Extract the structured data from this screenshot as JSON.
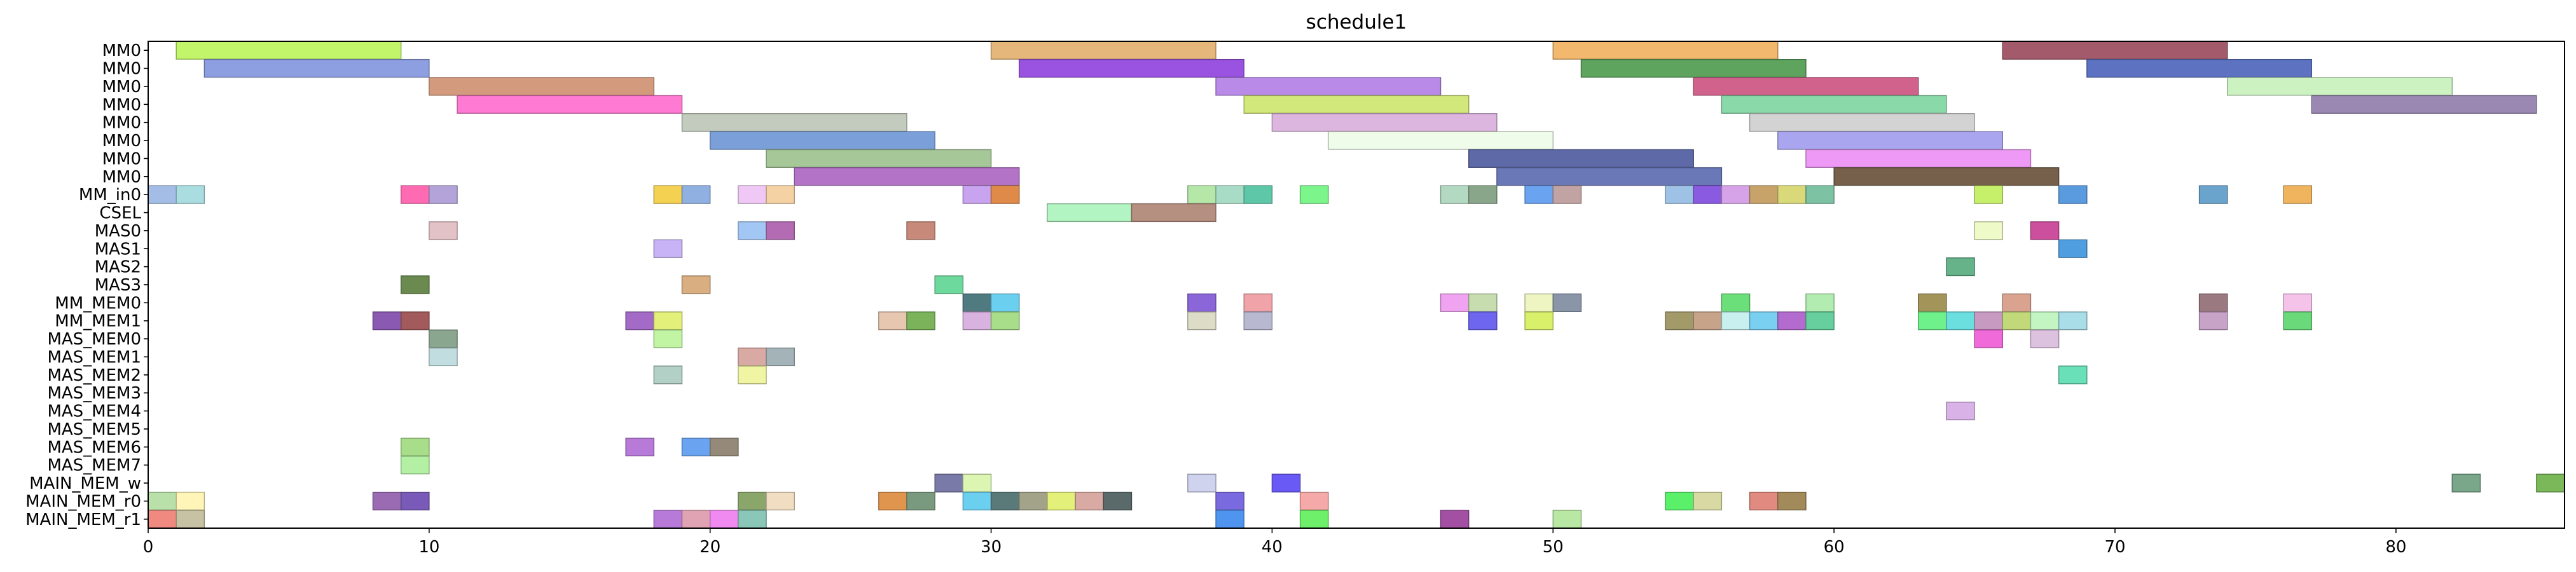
{
  "chart_data": {
    "type": "gantt",
    "title": "schedule1",
    "xlabel": "",
    "ylabel": "",
    "xlim": [
      0,
      86
    ],
    "xticks": [
      0,
      10,
      20,
      30,
      40,
      50,
      60,
      70,
      80
    ],
    "grid": false,
    "legend": "none",
    "rows": [
      "MM0",
      "MM0",
      "MM0",
      "MM0",
      "MM0",
      "MM0",
      "MM0",
      "MM0",
      "MM_in0",
      "CSEL",
      "MAS0",
      "MAS1",
      "MAS2",
      "MAS3",
      "MM_MEM0",
      "MM_MEM1",
      "MAS_MEM0",
      "MAS_MEM1",
      "MAS_MEM2",
      "MAS_MEM3",
      "MAS_MEM4",
      "MAS_MEM5",
      "MAS_MEM6",
      "MAS_MEM7",
      "MAIN_MEM_w",
      "MAIN_MEM_r0",
      "MAIN_MEM_r1"
    ],
    "tasks": [
      {
        "row": 0,
        "start": 1,
        "end": 9,
        "color": "#c2f56a"
      },
      {
        "row": 0,
        "start": 30,
        "end": 38,
        "color": "#e6b77a"
      },
      {
        "row": 0,
        "start": 50,
        "end": 58,
        "color": "#f2b86e"
      },
      {
        "row": 0,
        "start": 66,
        "end": 74,
        "color": "#a35a6a"
      },
      {
        "row": 1,
        "start": 2,
        "end": 10,
        "color": "#8d9fe0"
      },
      {
        "row": 1,
        "start": 31,
        "end": 39,
        "color": "#9a52e0"
      },
      {
        "row": 1,
        "start": 51,
        "end": 59,
        "color": "#5ea35e"
      },
      {
        "row": 1,
        "start": 69,
        "end": 77,
        "color": "#5d73c2"
      },
      {
        "row": 2,
        "start": 10,
        "end": 18,
        "color": "#d49a7e"
      },
      {
        "row": 2,
        "start": 38,
        "end": 46,
        "color": "#b98ae8"
      },
      {
        "row": 2,
        "start": 55,
        "end": 63,
        "color": "#d1628c"
      },
      {
        "row": 2,
        "start": 74,
        "end": 82,
        "color": "#cdf2c2"
      },
      {
        "row": 3,
        "start": 11,
        "end": 19,
        "color": "#ff7ad2"
      },
      {
        "row": 3,
        "start": 39,
        "end": 47,
        "color": "#d3e87a"
      },
      {
        "row": 3,
        "start": 56,
        "end": 64,
        "color": "#8ad9a9"
      },
      {
        "row": 3,
        "start": 77,
        "end": 85,
        "color": "#9a88b3"
      },
      {
        "row": 4,
        "start": 19,
        "end": 27,
        "color": "#c2cbbd"
      },
      {
        "row": 4,
        "start": 40,
        "end": 48,
        "color": "#ddb6e0"
      },
      {
        "row": 4,
        "start": 57,
        "end": 65,
        "color": "#d3d3d3"
      },
      {
        "row": 5,
        "start": 20,
        "end": 28,
        "color": "#7a9fd9"
      },
      {
        "row": 5,
        "start": 42,
        "end": 50,
        "color": "#eefce9"
      },
      {
        "row": 5,
        "start": 58,
        "end": 66,
        "color": "#a9a6ef"
      },
      {
        "row": 6,
        "start": 22,
        "end": 30,
        "color": "#a6c797"
      },
      {
        "row": 6,
        "start": 47,
        "end": 55,
        "color": "#5e6aa8"
      },
      {
        "row": 6,
        "start": 59,
        "end": 67,
        "color": "#ee99f5"
      },
      {
        "row": 7,
        "start": 23,
        "end": 31,
        "color": "#b373c7"
      },
      {
        "row": 7,
        "start": 48,
        "end": 56,
        "color": "#6b78b8"
      },
      {
        "row": 7,
        "start": 60,
        "end": 68,
        "color": "#76604c"
      },
      {
        "row": 8,
        "start": 0,
        "end": 1,
        "color": "#a3bde6"
      },
      {
        "row": 8,
        "start": 1,
        "end": 2,
        "color": "#a9dde0"
      },
      {
        "row": 8,
        "start": 9,
        "end": 10,
        "color": "#ff6bb3"
      },
      {
        "row": 8,
        "start": 10,
        "end": 11,
        "color": "#b3a3d9"
      },
      {
        "row": 8,
        "start": 18,
        "end": 19,
        "color": "#f5d152"
      },
      {
        "row": 8,
        "start": 19,
        "end": 20,
        "color": "#8fb0e0"
      },
      {
        "row": 8,
        "start": 21,
        "end": 22,
        "color": "#f0c8f5"
      },
      {
        "row": 8,
        "start": 22,
        "end": 23,
        "color": "#f5d2a3"
      },
      {
        "row": 8,
        "start": 29,
        "end": 30,
        "color": "#c8a3f0"
      },
      {
        "row": 8,
        "start": 30,
        "end": 31,
        "color": "#e08a4a"
      },
      {
        "row": 8,
        "start": 37,
        "end": 38,
        "color": "#b5e8a8"
      },
      {
        "row": 8,
        "start": 38,
        "end": 39,
        "color": "#a9dcc6"
      },
      {
        "row": 8,
        "start": 39,
        "end": 40,
        "color": "#5ec7a8"
      },
      {
        "row": 8,
        "start": 41,
        "end": 42,
        "color": "#7cf58a"
      },
      {
        "row": 8,
        "start": 46,
        "end": 47,
        "color": "#b3d9c2"
      },
      {
        "row": 8,
        "start": 47,
        "end": 48,
        "color": "#8aa68a"
      },
      {
        "row": 8,
        "start": 49,
        "end": 50,
        "color": "#6aa3f0"
      },
      {
        "row": 8,
        "start": 50,
        "end": 51,
        "color": "#c2a3a3"
      },
      {
        "row": 8,
        "start": 54,
        "end": 55,
        "color": "#9dc2e6"
      },
      {
        "row": 8,
        "start": 55,
        "end": 56,
        "color": "#8a5ae0"
      },
      {
        "row": 8,
        "start": 56,
        "end": 57,
        "color": "#d6a3e8"
      },
      {
        "row": 8,
        "start": 57,
        "end": 58,
        "color": "#c7a36a"
      },
      {
        "row": 8,
        "start": 58,
        "end": 59,
        "color": "#d9d97a"
      },
      {
        "row": 8,
        "start": 59,
        "end": 60,
        "color": "#7cc2a3"
      },
      {
        "row": 8,
        "start": 65,
        "end": 66,
        "color": "#c7f06a"
      },
      {
        "row": 8,
        "start": 68,
        "end": 69,
        "color": "#5a9be0"
      },
      {
        "row": 8,
        "start": 73,
        "end": 74,
        "color": "#6aa3cc"
      },
      {
        "row": 8,
        "start": 76,
        "end": 77,
        "color": "#f0b35e"
      },
      {
        "row": 9,
        "start": 32,
        "end": 35,
        "color": "#b3f5c2"
      },
      {
        "row": 9,
        "start": 35,
        "end": 38,
        "color": "#b58f80"
      },
      {
        "row": 10,
        "start": 10,
        "end": 11,
        "color": "#e3c2c7"
      },
      {
        "row": 10,
        "start": 21,
        "end": 22,
        "color": "#a3c7f5"
      },
      {
        "row": 10,
        "start": 22,
        "end": 23,
        "color": "#b36bb3"
      },
      {
        "row": 10,
        "start": 27,
        "end": 28,
        "color": "#c7897a"
      },
      {
        "row": 10,
        "start": 65,
        "end": 66,
        "color": "#eefac7"
      },
      {
        "row": 10,
        "start": 67,
        "end": 68,
        "color": "#cc4f9d"
      },
      {
        "row": 11,
        "start": 18,
        "end": 19,
        "color": "#c7b3f5"
      },
      {
        "row": 11,
        "start": 68,
        "end": 69,
        "color": "#4f9fe0"
      },
      {
        "row": 12,
        "start": 64,
        "end": 65,
        "color": "#66b38a"
      },
      {
        "row": 13,
        "start": 9,
        "end": 10,
        "color": "#6b8a4f"
      },
      {
        "row": 13,
        "start": 19,
        "end": 20,
        "color": "#d9ae80"
      },
      {
        "row": 13,
        "start": 28,
        "end": 29,
        "color": "#6ed99d"
      },
      {
        "row": 14,
        "start": 29,
        "end": 30,
        "color": "#4f7a80"
      },
      {
        "row": 14,
        "start": 30,
        "end": 31,
        "color": "#6bd0f0"
      },
      {
        "row": 14,
        "start": 37,
        "end": 38,
        "color": "#8a66d9"
      },
      {
        "row": 14,
        "start": 39,
        "end": 40,
        "color": "#f0a3a8"
      },
      {
        "row": 14,
        "start": 46,
        "end": 47,
        "color": "#f0a3f0"
      },
      {
        "row": 14,
        "start": 47,
        "end": 48,
        "color": "#c7ddb0"
      },
      {
        "row": 14,
        "start": 49,
        "end": 50,
        "color": "#eef5c2"
      },
      {
        "row": 14,
        "start": 50,
        "end": 51,
        "color": "#8a95a8"
      },
      {
        "row": 14,
        "start": 56,
        "end": 57,
        "color": "#6be07a"
      },
      {
        "row": 14,
        "start": 59,
        "end": 60,
        "color": "#b3ecb0"
      },
      {
        "row": 14,
        "start": 63,
        "end": 64,
        "color": "#a3955a"
      },
      {
        "row": 14,
        "start": 66,
        "end": 67,
        "color": "#d9a38f"
      },
      {
        "row": 14,
        "start": 73,
        "end": 74,
        "color": "#9a7a80"
      },
      {
        "row": 14,
        "start": 76,
        "end": 77,
        "color": "#f5c2ea"
      },
      {
        "row": 15,
        "start": 8,
        "end": 9,
        "color": "#8a5ab3"
      },
      {
        "row": 15,
        "start": 9,
        "end": 10,
        "color": "#a35a5a"
      },
      {
        "row": 15,
        "start": 17,
        "end": 18,
        "color": "#a36bc7"
      },
      {
        "row": 15,
        "start": 18,
        "end": 19,
        "color": "#e3f07a"
      },
      {
        "row": 15,
        "start": 26,
        "end": 27,
        "color": "#e8c7b0"
      },
      {
        "row": 15,
        "start": 27,
        "end": 28,
        "color": "#7ab35a"
      },
      {
        "row": 15,
        "start": 29,
        "end": 30,
        "color": "#d9b3e0"
      },
      {
        "row": 15,
        "start": 30,
        "end": 31,
        "color": "#a8dd8a"
      },
      {
        "row": 15,
        "start": 37,
        "end": 38,
        "color": "#ddddc7"
      },
      {
        "row": 15,
        "start": 39,
        "end": 40,
        "color": "#b8b8d0"
      },
      {
        "row": 15,
        "start": 47,
        "end": 48,
        "color": "#6f66f0"
      },
      {
        "row": 15,
        "start": 49,
        "end": 50,
        "color": "#d9f06a"
      },
      {
        "row": 15,
        "start": 54,
        "end": 55,
        "color": "#a39a6a"
      },
      {
        "row": 15,
        "start": 55,
        "end": 56,
        "color": "#c7a38a"
      },
      {
        "row": 15,
        "start": 56,
        "end": 57,
        "color": "#c7f0ee"
      },
      {
        "row": 15,
        "start": 57,
        "end": 58,
        "color": "#7ad0f0"
      },
      {
        "row": 15,
        "start": 58,
        "end": 59,
        "color": "#b36bd0"
      },
      {
        "row": 15,
        "start": 59,
        "end": 60,
        "color": "#66cf9d"
      },
      {
        "row": 15,
        "start": 63,
        "end": 64,
        "color": "#6ef08a"
      },
      {
        "row": 15,
        "start": 64,
        "end": 65,
        "color": "#6bdfe0"
      },
      {
        "row": 15,
        "start": 65,
        "end": 66,
        "color": "#c79ac2"
      },
      {
        "row": 15,
        "start": 66,
        "end": 67,
        "color": "#c2d97a"
      },
      {
        "row": 15,
        "start": 67,
        "end": 68,
        "color": "#c2f5c2"
      },
      {
        "row": 15,
        "start": 68,
        "end": 69,
        "color": "#a9dde8"
      },
      {
        "row": 15,
        "start": 73,
        "end": 74,
        "color": "#c7a3c7"
      },
      {
        "row": 15,
        "start": 76,
        "end": 77,
        "color": "#6ad97a"
      },
      {
        "row": 16,
        "start": 10,
        "end": 11,
        "color": "#8aa68f"
      },
      {
        "row": 16,
        "start": 18,
        "end": 19,
        "color": "#c2f5a3"
      },
      {
        "row": 16,
        "start": 65,
        "end": 66,
        "color": "#f06bd9"
      },
      {
        "row": 16,
        "start": 67,
        "end": 68,
        "color": "#ddc2e0"
      },
      {
        "row": 17,
        "start": 10,
        "end": 11,
        "color": "#c2dde0"
      },
      {
        "row": 17,
        "start": 21,
        "end": 22,
        "color": "#d9a9a3"
      },
      {
        "row": 17,
        "start": 22,
        "end": 23,
        "color": "#a3b3b8"
      },
      {
        "row": 18,
        "start": 18,
        "end": 19,
        "color": "#b3d0c7"
      },
      {
        "row": 18,
        "start": 21,
        "end": 22,
        "color": "#f0f5a3"
      },
      {
        "row": 18,
        "start": 68,
        "end": 69,
        "color": "#6ae0b8"
      },
      {
        "row": 20,
        "start": 64,
        "end": 65,
        "color": "#d9b3e8"
      },
      {
        "row": 22,
        "start": 9,
        "end": 10,
        "color": "#a8dd8a"
      },
      {
        "row": 22,
        "start": 17,
        "end": 18,
        "color": "#b87ad9"
      },
      {
        "row": 22,
        "start": 19,
        "end": 20,
        "color": "#6aa3f0"
      },
      {
        "row": 22,
        "start": 20,
        "end": 21,
        "color": "#958a7a"
      },
      {
        "row": 23,
        "start": 9,
        "end": 10,
        "color": "#b3f0a3"
      },
      {
        "row": 24,
        "start": 28,
        "end": 29,
        "color": "#7a7aa8"
      },
      {
        "row": 24,
        "start": 29,
        "end": 30,
        "color": "#dcf5b3"
      },
      {
        "row": 24,
        "start": 37,
        "end": 38,
        "color": "#d0d3ee"
      },
      {
        "row": 24,
        "start": 40,
        "end": 41,
        "color": "#6a5af5"
      },
      {
        "row": 24,
        "start": 82,
        "end": 83,
        "color": "#7aa68a"
      },
      {
        "row": 24,
        "start": 85,
        "end": 86,
        "color": "#7ab85a"
      },
      {
        "row": 25,
        "start": 0,
        "end": 1,
        "color": "#b8e0a8"
      },
      {
        "row": 25,
        "start": 1,
        "end": 2,
        "color": "#fff5b8"
      },
      {
        "row": 25,
        "start": 8,
        "end": 9,
        "color": "#9a6ab3"
      },
      {
        "row": 25,
        "start": 9,
        "end": 10,
        "color": "#7a5ab8"
      },
      {
        "row": 25,
        "start": 21,
        "end": 22,
        "color": "#8aa66a"
      },
      {
        "row": 25,
        "start": 22,
        "end": 23,
        "color": "#f0ddc2"
      },
      {
        "row": 25,
        "start": 26,
        "end": 27,
        "color": "#e0954f"
      },
      {
        "row": 25,
        "start": 27,
        "end": 28,
        "color": "#7a9a80"
      },
      {
        "row": 25,
        "start": 29,
        "end": 30,
        "color": "#6bd0f0"
      },
      {
        "row": 25,
        "start": 30,
        "end": 31,
        "color": "#5a7a7a"
      },
      {
        "row": 25,
        "start": 31,
        "end": 32,
        "color": "#a3a38a"
      },
      {
        "row": 25,
        "start": 32,
        "end": 33,
        "color": "#e3f07a"
      },
      {
        "row": 25,
        "start": 33,
        "end": 34,
        "color": "#d9a9a3"
      },
      {
        "row": 25,
        "start": 34,
        "end": 35,
        "color": "#5a6a6a"
      },
      {
        "row": 25,
        "start": 38,
        "end": 39,
        "color": "#7a6ae0"
      },
      {
        "row": 25,
        "start": 41,
        "end": 42,
        "color": "#f5a9a9"
      },
      {
        "row": 25,
        "start": 54,
        "end": 55,
        "color": "#5af06a"
      },
      {
        "row": 25,
        "start": 55,
        "end": 56,
        "color": "#d9d9a3"
      },
      {
        "row": 25,
        "start": 57,
        "end": 58,
        "color": "#e08a80"
      },
      {
        "row": 25,
        "start": 58,
        "end": 59,
        "color": "#a38a5a"
      },
      {
        "row": 26,
        "start": 0,
        "end": 1,
        "color": "#f08a80"
      },
      {
        "row": 26,
        "start": 1,
        "end": 2,
        "color": "#c7c2a3"
      },
      {
        "row": 26,
        "start": 18,
        "end": 19,
        "color": "#b87ad9"
      },
      {
        "row": 26,
        "start": 19,
        "end": 20,
        "color": "#e0a3b3"
      },
      {
        "row": 26,
        "start": 20,
        "end": 21,
        "color": "#f08af0"
      },
      {
        "row": 26,
        "start": 21,
        "end": 22,
        "color": "#8ac7b8"
      },
      {
        "row": 26,
        "start": 38,
        "end": 39,
        "color": "#4f95f0"
      },
      {
        "row": 26,
        "start": 41,
        "end": 42,
        "color": "#6ef06a"
      },
      {
        "row": 26,
        "start": 46,
        "end": 47,
        "color": "#a34fa3"
      },
      {
        "row": 26,
        "start": 50,
        "end": 51,
        "color": "#b8e8a3"
      }
    ]
  }
}
